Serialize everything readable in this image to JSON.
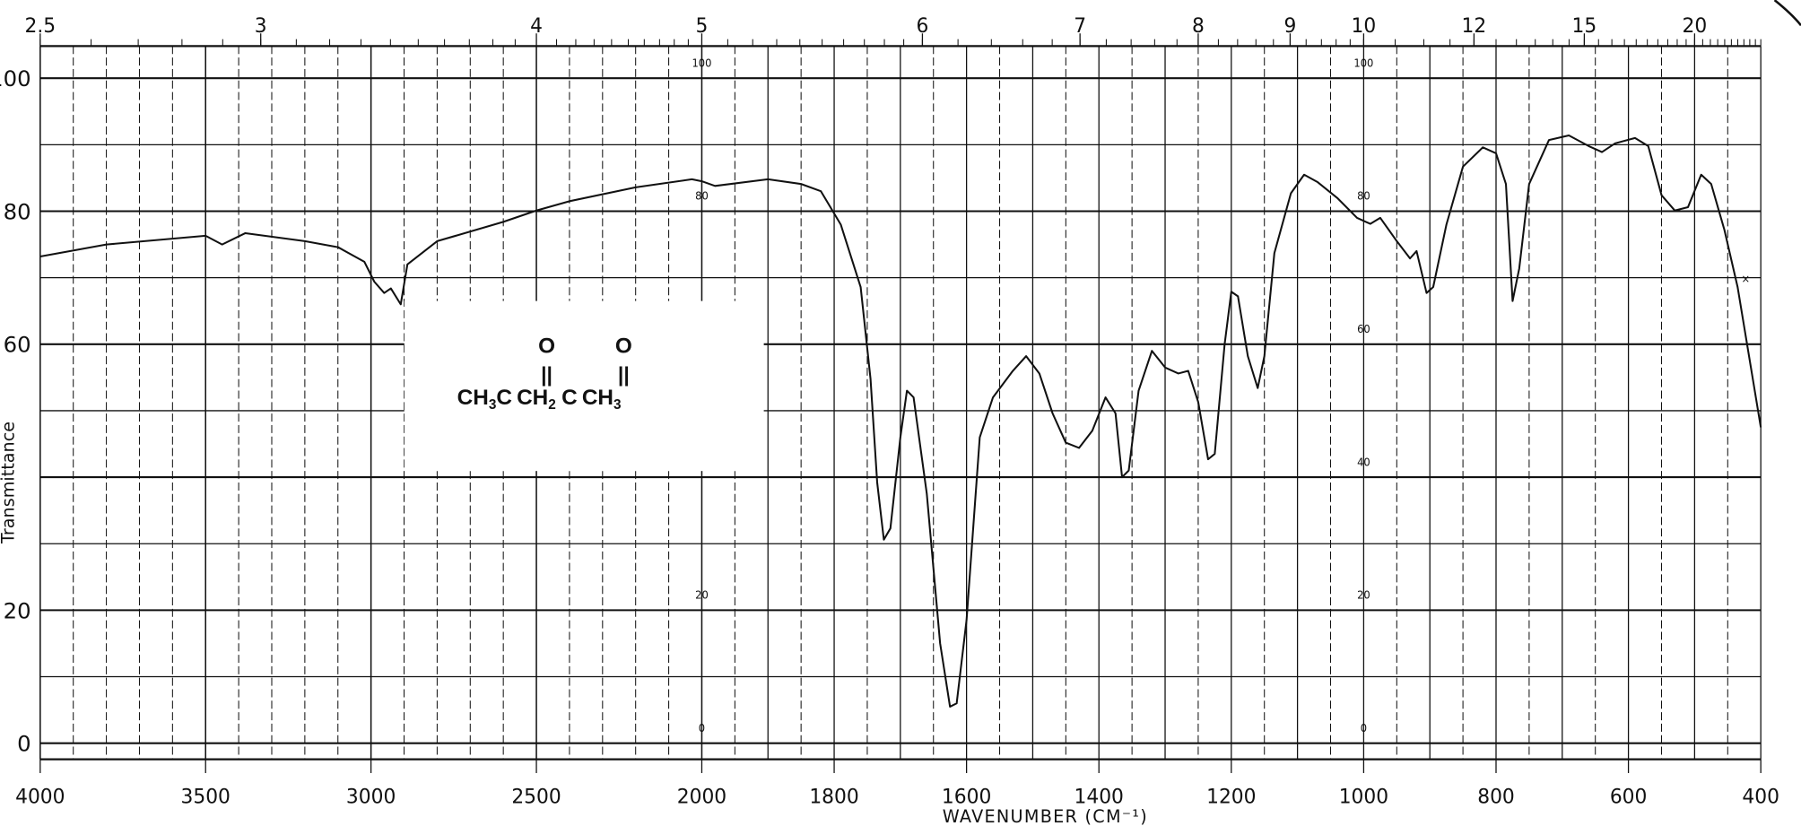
{
  "chart_data": {
    "type": "line",
    "title": "",
    "xlabel": "WAVENUMBER (CM⁻¹)",
    "ylabel": "Transmittance",
    "xlim": [
      4000,
      400
    ],
    "ylim": [
      0,
      100
    ],
    "x_scale": "piecewise linear, scale doubles below 2000",
    "grid": true,
    "x_tick_labels": [
      "4000",
      "3500",
      "3000",
      "2500",
      "2000",
      "1800",
      "1600",
      "1400",
      "1200",
      "1000",
      "800",
      "600",
      "400"
    ],
    "y_tick_labels": [
      "100",
      "80",
      "60",
      "20",
      "0"
    ],
    "inner_y_labels": [
      "100",
      "80",
      "60",
      "40",
      "20",
      "0"
    ],
    "top_axis": {
      "label_unit": "microns",
      "tick_labels": [
        "2.5",
        "3",
        "4",
        "5",
        "6",
        "7",
        "8",
        "9",
        "10",
        "12",
        "15",
        "20"
      ]
    },
    "marker": {
      "text": "×",
      "x": 405,
      "y": 70
    },
    "line_color": "#111111",
    "series": [
      {
        "x": [
          4000,
          3800,
          3500,
          3450,
          3380,
          3200,
          3100,
          3020,
          2990,
          2960,
          2940,
          2910,
          2890,
          2800,
          2600,
          2500,
          2400,
          2200,
          2030,
          2000,
          1980,
          1900,
          1850,
          1820,
          1790,
          1760,
          1745,
          1735,
          1725,
          1715,
          1700,
          1690,
          1680,
          1660,
          1640,
          1625,
          1615,
          1600,
          1580,
          1560,
          1530,
          1510,
          1490,
          1470,
          1450,
          1430,
          1410,
          1390,
          1375,
          1365,
          1355,
          1340,
          1320,
          1300,
          1280,
          1265,
          1250,
          1235,
          1225,
          1210,
          1200,
          1190,
          1175,
          1160,
          1150,
          1135,
          1110,
          1090,
          1070,
          1040,
          1010,
          990,
          975,
          950,
          930,
          920,
          905,
          895,
          875,
          850,
          820,
          800,
          785,
          775,
          765,
          750,
          720,
          690,
          660,
          640,
          620,
          590,
          570,
          550,
          530,
          510,
          490,
          475,
          455,
          435,
          415,
          400
        ],
        "y": [
          73.2,
          75,
          76.3,
          75,
          76.7,
          75.5,
          74.6,
          72.4,
          69.4,
          67.7,
          68.4,
          66,
          72,
          75.5,
          78.4,
          80.1,
          81.5,
          83.6,
          84.8,
          84.5,
          83.8,
          84.8,
          84.1,
          83,
          78,
          68.6,
          54.8,
          39.2,
          30.6,
          32.3,
          46,
          53,
          52,
          37.5,
          15,
          5.5,
          6,
          18.5,
          46,
          52,
          56,
          58.2,
          55.6,
          49.6,
          45.2,
          44.4,
          47,
          52,
          49.6,
          40,
          41,
          53,
          59,
          56.5,
          55.6,
          56,
          51.3,
          42.7,
          43.5,
          60,
          67.9,
          67.2,
          58.2,
          53.4,
          58.2,
          73.7,
          82.7,
          85.5,
          84.4,
          82,
          79,
          78.1,
          79,
          75.5,
          72.9,
          74,
          67.7,
          68.6,
          78,
          86.7,
          89.6,
          88.7,
          84.1,
          66.5,
          71.4,
          84.1,
          90.7,
          91.4,
          89.8,
          88.9,
          90.2,
          91,
          89.8,
          82.4,
          80.1,
          80.6,
          85.5,
          84.1,
          77.2,
          68.6,
          56.5,
          47.5
        ]
      }
    ],
    "annotation_structure": {
      "carbonyl_o": "O",
      "double_bond": "||",
      "parts": [
        "CH",
        "3",
        "C",
        "CH",
        "2",
        "C",
        "CH",
        "3"
      ]
    }
  }
}
